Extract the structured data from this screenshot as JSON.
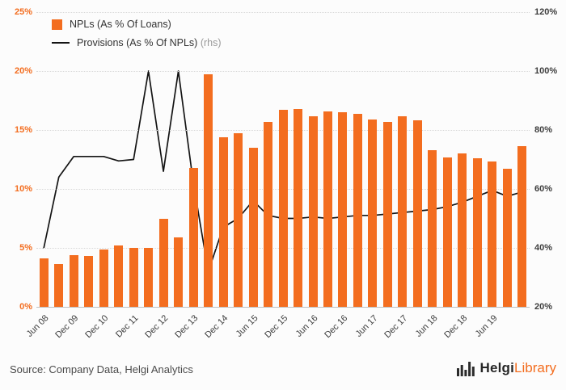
{
  "legend": {
    "bars_label": "NPLs (As % Of Loans)",
    "line_label": "Provisions (As % Of NPLs)",
    "line_suffix": "(rhs)"
  },
  "source_text": "Source: Company Data, Helgi Analytics",
  "logo": {
    "part1": "Helgi",
    "part2": "Library",
    "icon": "bar-chart-icon"
  },
  "colors": {
    "bar": "#f36d1f",
    "line": "#141414",
    "left_axis_text": "#f36d1f",
    "right_axis_text": "#3d3d3d",
    "grid": "#d8d8d8",
    "background": "#fcfcfc",
    "rhs_suffix": "#9a9a9a"
  },
  "chart_data": {
    "type": "combo-bar-line",
    "title": "",
    "grid": "horizontal-dotted",
    "legend_position": "top-left",
    "left_axis": {
      "min": 0,
      "max": 25,
      "ticks": [
        {
          "value": 0,
          "label": "0%"
        },
        {
          "value": 5,
          "label": "5%"
        },
        {
          "value": 10,
          "label": "10%"
        },
        {
          "value": 15,
          "label": "15%"
        },
        {
          "value": 20,
          "label": "20%"
        },
        {
          "value": 25,
          "label": "25%"
        }
      ]
    },
    "right_axis": {
      "min": 20,
      "max": 120,
      "ticks": [
        {
          "value": 20,
          "label": "20%"
        },
        {
          "value": 40,
          "label": "40%"
        },
        {
          "value": 60,
          "label": "60%"
        },
        {
          "value": 80,
          "label": "80%"
        },
        {
          "value": 100,
          "label": "100%"
        },
        {
          "value": 120,
          "label": "120%"
        }
      ]
    },
    "x_ticks": [
      {
        "bar": 0,
        "label": "Jun 08"
      },
      {
        "bar": 2,
        "label": "Dec 09"
      },
      {
        "bar": 4,
        "label": "Dec 10"
      },
      {
        "bar": 6,
        "label": "Dec 11"
      },
      {
        "bar": 8,
        "label": "Dec 12"
      },
      {
        "bar": 10,
        "label": "Dec 13"
      },
      {
        "bar": 12,
        "label": "Dec 14"
      },
      {
        "bar": 14,
        "label": "Jun 15"
      },
      {
        "bar": 16,
        "label": "Dec 15"
      },
      {
        "bar": 18,
        "label": "Jun 16"
      },
      {
        "bar": 20,
        "label": "Dec 16"
      },
      {
        "bar": 22,
        "label": "Jun 17"
      },
      {
        "bar": 24,
        "label": "Dec 17"
      },
      {
        "bar": 26,
        "label": "Jun 18"
      },
      {
        "bar": 28,
        "label": "Dec 18"
      },
      {
        "bar": 30,
        "label": "Jun 19"
      }
    ],
    "series": [
      {
        "name": "NPLs (As % Of Loans)",
        "type": "bar",
        "axis": "left",
        "values": [
          4.1,
          3.6,
          4.4,
          4.3,
          4.9,
          5.2,
          5.0,
          5.0,
          7.5,
          5.9,
          11.8,
          19.7,
          14.4,
          14.7,
          13.5,
          15.7,
          16.7,
          16.8,
          16.2,
          16.6,
          16.5,
          16.4,
          15.9,
          15.7,
          16.2,
          15.8,
          13.3,
          12.7,
          13.0,
          12.6,
          12.3,
          11.7,
          13.6
        ]
      },
      {
        "name": "Provisions (As % Of NPLs)",
        "type": "line",
        "axis": "right",
        "values": [
          40,
          64,
          71,
          71,
          71,
          69.5,
          70,
          100,
          66,
          100,
          62,
          32,
          47,
          50,
          56,
          51,
          50,
          50,
          50.5,
          50,
          50.5,
          51,
          51,
          51.5,
          52,
          52.5,
          53,
          54,
          55.5,
          57.5,
          59.5,
          57.5,
          59
        ]
      }
    ]
  }
}
